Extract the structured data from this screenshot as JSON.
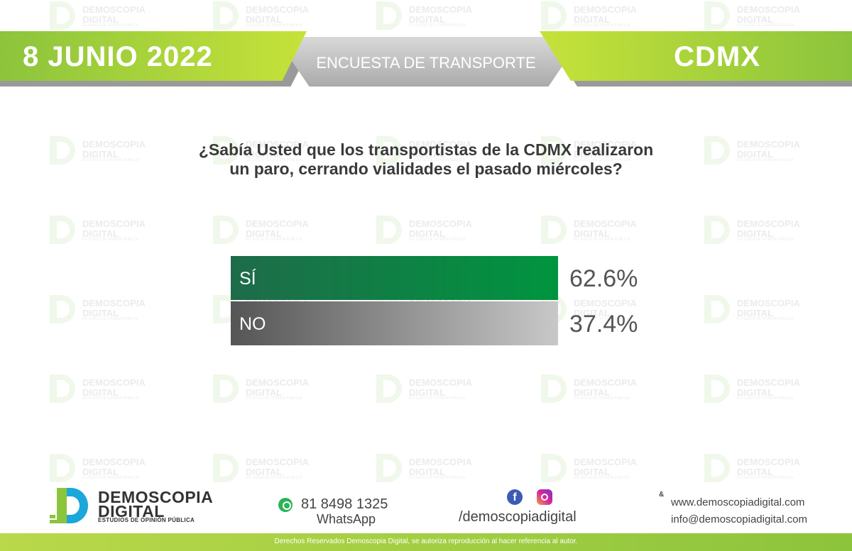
{
  "header": {
    "date": "8 JUNIO 2022",
    "title": "ENCUESTA DE TRANSPORTE",
    "city": "CDMX"
  },
  "watermark": {
    "line1": "DEMOSCOPIA",
    "line2": "DIGITAL",
    "line3": "ESTUDIOS DE OPINIÓN PÚBLICA"
  },
  "question": {
    "line1": "¿Sabía Usted que los transportistas de la CDMX realizaron",
    "line2": "un paro, cerrando vialidades el pasado miércoles?"
  },
  "chart_data": {
    "type": "bar",
    "orientation": "horizontal",
    "categories": [
      "SÍ",
      "NO"
    ],
    "values": [
      62.6,
      37.4
    ],
    "value_labels": [
      "62.6%",
      "37.4%"
    ],
    "colors": [
      [
        "#1e6b4a",
        "#00953f"
      ],
      [
        "#555555",
        "#c8c8c8"
      ]
    ],
    "title": "",
    "xlabel": "",
    "ylabel": "",
    "grid": false
  },
  "footer": {
    "logo_line1": "DEMOSCOPIA",
    "logo_line2": "DIGITAL",
    "logo_line3": "ESTUDIOS DE OPINIÓN PÚBLICA",
    "phone": "81 8498 1325",
    "phone_label": "WhatsApp",
    "social_handle": "/demoscopiadigital",
    "amp": "&",
    "website": "www.demoscopiadigital.com",
    "email": "info@demoscopiadigital.com",
    "copyright": "Derechos Reservados Demoscopia Digital, se autoriza reproducción al hacer referencia al autor."
  },
  "colors": {
    "brand_green": "#8cc43c",
    "brand_lime": "#c6e23a",
    "brand_blue": "#1aa7d9",
    "header_gray": "#aaaaaa"
  }
}
